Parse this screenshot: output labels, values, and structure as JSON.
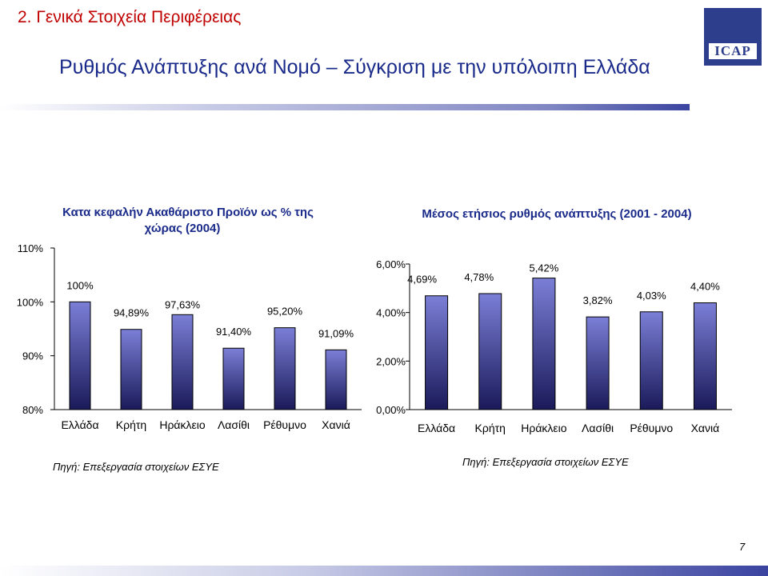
{
  "header": {
    "section_title": "2. Γενικά Στοιχεία Περιφέρειας",
    "main_title": "Ρυθμός Ανάπτυξης ανά Νομό – Σύγκριση με την υπόλοιπη Ελλάδα",
    "logo_text": "ICAP"
  },
  "colors": {
    "bar_top": "#7b7fd6",
    "bar_bottom": "#1a1a5a",
    "accent_title": "#c00000",
    "brand": "#2d3e8c"
  },
  "chart_data": [
    {
      "type": "bar",
      "title_line1": "Κατα κεφαλήν Ακαθάριστο Προϊόν ως % της",
      "title_line2": "χώρας (2004)",
      "categories": [
        "Ελλάδα",
        "Κρήτη",
        "Ηράκλειο",
        "Λασίθι",
        "Ρέθυμνο",
        "Χανιά"
      ],
      "values": [
        100,
        94.89,
        97.63,
        91.4,
        95.2,
        91.09
      ],
      "data_labels": [
        "100%",
        "94,89%",
        "97,63%",
        "91,40%",
        "95,20%",
        "91,09%"
      ],
      "ylim": [
        80,
        110
      ],
      "yticks": [
        80,
        90,
        100,
        110
      ],
      "ytick_labels": [
        "80%",
        "90%",
        "100%",
        "110%"
      ],
      "source": "Πηγή: Επεξεργασία στοιχείων ΕΣΥΕ"
    },
    {
      "type": "bar",
      "title": "Μέσος ετήσιος ρυθμός ανάπτυξης (2001 - 2004)",
      "categories": [
        "Ελλάδα",
        "Κρήτη",
        "Ηράκλειο",
        "Λασίθι",
        "Ρέθυμνο",
        "Χανιά"
      ],
      "values": [
        4.69,
        4.78,
        5.42,
        3.82,
        4.03,
        4.4
      ],
      "data_labels": [
        "4,69%",
        "4,78%",
        "5,42%",
        "3,82%",
        "4,03%",
        "4,40%"
      ],
      "ylim": [
        0,
        6
      ],
      "yticks": [
        0,
        2,
        4,
        6
      ],
      "ytick_labels": [
        "0,00%",
        "2,00%",
        "4,00%",
        "6,00%"
      ],
      "source": "Πηγή: Επεξεργασία στοιχείων ΕΣΥΕ"
    }
  ],
  "footer": {
    "page_number": "7"
  }
}
